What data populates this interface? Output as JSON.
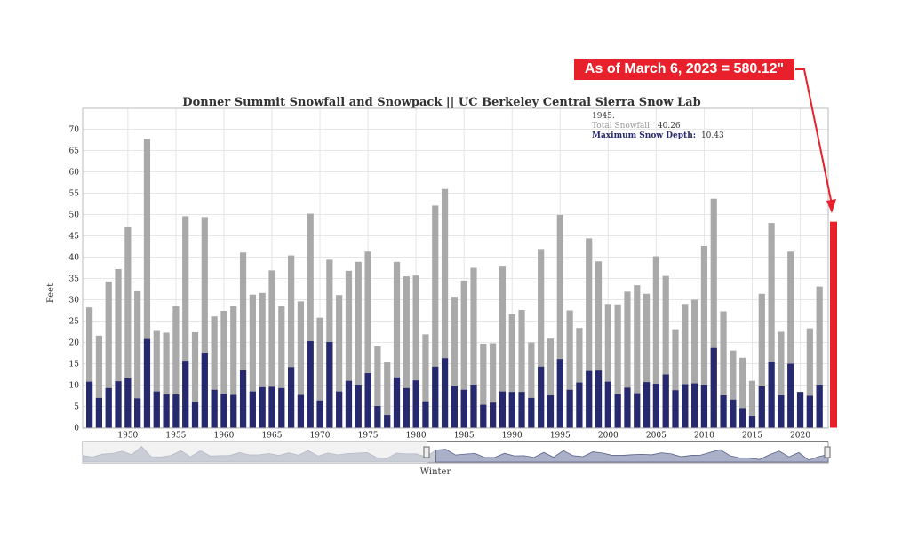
{
  "annotation": {
    "text": "As of March 6, 2023 = 580.12\"",
    "color": "#e8202b",
    "bar_value": 48.3
  },
  "tooltip": {
    "year": "1945:",
    "snowfall_label": "Total Snowfall:",
    "snowfall_value": "40.26",
    "depth_label": "Maximum Snow Depth:",
    "depth_value": "10.43"
  },
  "chart_data": {
    "type": "bar",
    "title": "Donner Summit Snowfall and Snowpack || UC Berkeley Central Sierra Snow Lab",
    "xlabel": "Winter",
    "ylabel": "Feet",
    "ylim": [
      0,
      72
    ],
    "yticks": [
      0,
      5,
      10,
      15,
      20,
      25,
      30,
      35,
      40,
      45,
      50,
      55,
      60,
      65,
      70
    ],
    "xticks": [
      "1950",
      "1955",
      "1960",
      "1965",
      "1970",
      "1975",
      "1980",
      "1985",
      "1990",
      "1995",
      "2000",
      "2005",
      "2010",
      "2015",
      "2020"
    ],
    "grid": true,
    "x_start": 1946,
    "x": [
      1946,
      1947,
      1948,
      1949,
      1950,
      1951,
      1952,
      1953,
      1954,
      1955,
      1956,
      1957,
      1958,
      1959,
      1960,
      1961,
      1962,
      1963,
      1964,
      1965,
      1966,
      1967,
      1968,
      1969,
      1970,
      1971,
      1972,
      1973,
      1974,
      1975,
      1976,
      1977,
      1978,
      1979,
      1980,
      1981,
      1982,
      1983,
      1984,
      1985,
      1986,
      1987,
      1988,
      1989,
      1990,
      1991,
      1992,
      1993,
      1994,
      1995,
      1996,
      1997,
      1998,
      1999,
      2000,
      2001,
      2002,
      2003,
      2004,
      2005,
      2006,
      2007,
      2008,
      2009,
      2010,
      2011,
      2012,
      2013,
      2014,
      2015,
      2016,
      2017,
      2018,
      2019,
      2020,
      2021,
      2022
    ],
    "series": [
      {
        "name": "Total Snowfall",
        "color": "#a9a9a9",
        "values": [
          28.2,
          21.6,
          34.3,
          37.2,
          47.0,
          32.0,
          67.7,
          22.7,
          22.3,
          28.5,
          49.6,
          22.4,
          49.4,
          26.1,
          27.4,
          28.5,
          41.1,
          31.2,
          31.6,
          36.9,
          28.5,
          40.4,
          29.6,
          50.2,
          25.8,
          39.4,
          31.1,
          36.8,
          38.9,
          41.3,
          19.1,
          15.3,
          38.9,
          35.5,
          35.7,
          21.9,
          52.1,
          56.0,
          30.7,
          34.5,
          37.5,
          19.7,
          19.8,
          38.0,
          26.6,
          27.6,
          20.0,
          41.9,
          20.9,
          49.9,
          27.5,
          23.4,
          44.4,
          39.0,
          29.0,
          28.9,
          31.9,
          33.4,
          31.4,
          40.2,
          35.6,
          23.1,
          29.0,
          30.0,
          42.6,
          53.7,
          27.3,
          18.1,
          16.4,
          11.0,
          31.4,
          48.0,
          22.5,
          41.3,
          8.4,
          23.3,
          33.1
        ]
      },
      {
        "name": "Maximum Snow Depth",
        "color": "#26296e",
        "values": [
          10.8,
          7.0,
          9.3,
          10.9,
          11.6,
          6.9,
          20.8,
          8.5,
          7.8,
          7.8,
          15.7,
          6.0,
          17.6,
          8.9,
          8.0,
          7.7,
          13.5,
          8.5,
          9.5,
          9.6,
          9.3,
          14.2,
          7.7,
          20.3,
          6.4,
          20.1,
          8.5,
          11.0,
          10.1,
          12.8,
          5.1,
          3.0,
          11.8,
          9.3,
          11.1,
          6.2,
          14.3,
          16.3,
          9.8,
          8.9,
          10.1,
          5.4,
          5.9,
          8.5,
          8.4,
          8.4,
          7.0,
          14.3,
          7.6,
          16.1,
          8.9,
          10.6,
          13.3,
          13.4,
          10.8,
          7.9,
          9.4,
          8.1,
          10.7,
          10.3,
          12.5,
          8.8,
          10.2,
          10.4,
          10.1,
          18.7,
          7.6,
          6.6,
          4.6,
          2.8,
          9.7,
          15.4,
          7.6,
          15.0,
          8.4,
          7.5,
          10.1
        ]
      }
    ]
  }
}
